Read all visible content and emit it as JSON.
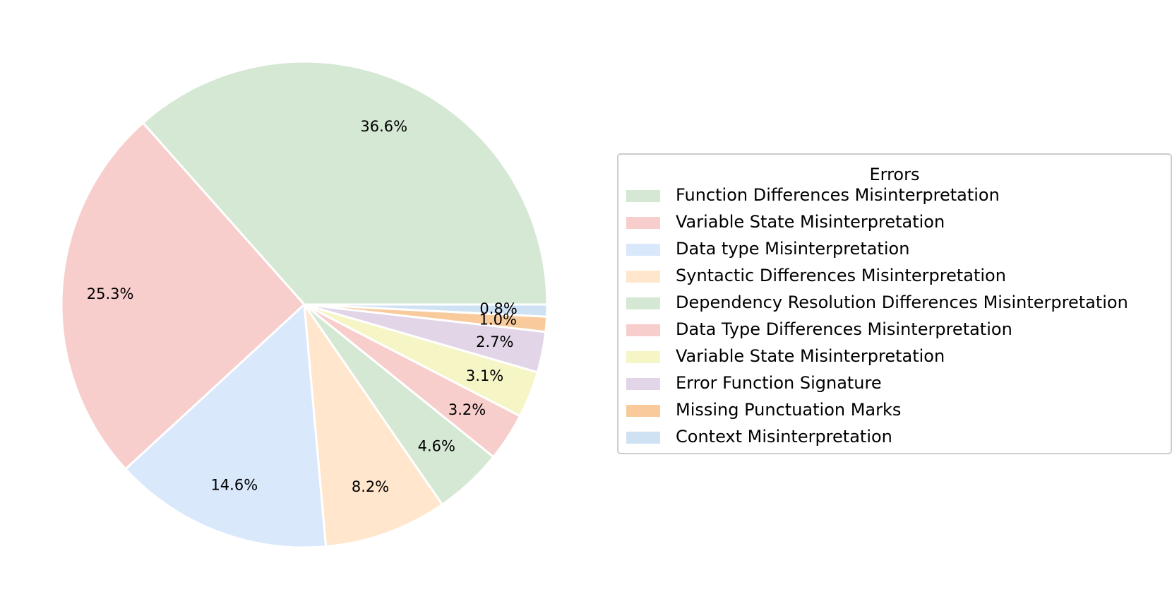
{
  "chart_data": {
    "type": "pie",
    "legend": {
      "title": "Errors",
      "placement": "right"
    },
    "slices": [
      {
        "label": "Function Differences Misinterpretation",
        "value": 36.6,
        "display": "36.6%",
        "color": "#d5e8d4"
      },
      {
        "label": "Variable State Misinterpretation",
        "value": 25.3,
        "display": "25.3%",
        "color": "#f8cecc"
      },
      {
        "label": "Data type Misinterpretation",
        "value": 14.6,
        "display": "14.6%",
        "color": "#dae8fc"
      },
      {
        "label": "Syntactic Differences Misinterpretation",
        "value": 8.2,
        "display": "8.2%",
        "color": "#ffe6cc"
      },
      {
        "label": "Dependency Resolution Differences Misinterpretation",
        "value": 4.6,
        "display": "4.6%",
        "color": "#d5e8d4"
      },
      {
        "label": "Data Type Differences Misinterpretation",
        "value": 3.2,
        "display": "3.2%",
        "color": "#f8cecc"
      },
      {
        "label": "Variable State Misinterpretation",
        "value": 3.1,
        "display": "3.1%",
        "color": "#f5f5c6"
      },
      {
        "label": "Error Function Signature",
        "value": 2.7,
        "display": "2.7%",
        "color": "#e1d5e7"
      },
      {
        "label": "Missing Punctuation Marks",
        "value": 1.0,
        "display": "1.0%",
        "color": "#f9cb9c"
      },
      {
        "label": "Context Misinterpretation",
        "value": 0.8,
        "display": "0.8%",
        "color": "#cfe2f3"
      }
    ]
  }
}
